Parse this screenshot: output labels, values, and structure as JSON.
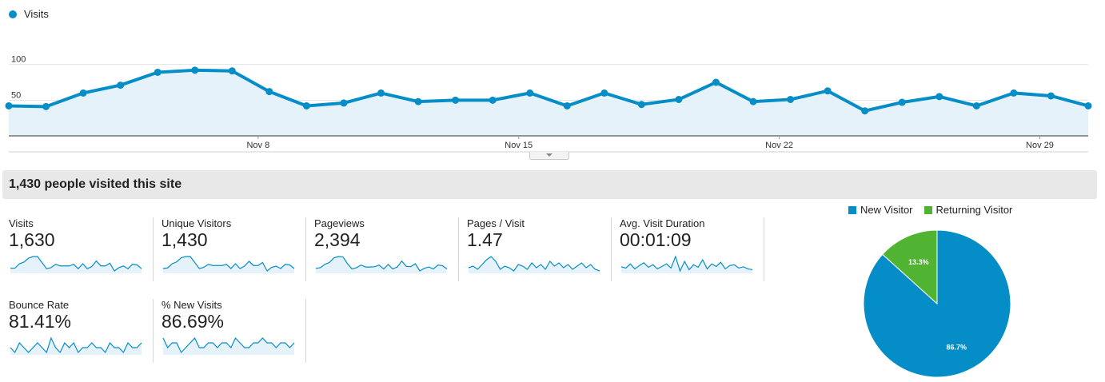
{
  "legend": {
    "label": "Visits",
    "color": "#058dc7"
  },
  "summary": {
    "title": "1,430 people visited this site"
  },
  "metrics": [
    {
      "label": "Visits",
      "value": "1,630",
      "spark": [
        42,
        42,
        50,
        53,
        60,
        63,
        63,
        52,
        41,
        43,
        49,
        46,
        46,
        46,
        49,
        41,
        50,
        41,
        45,
        55,
        46,
        46,
        51,
        37,
        43,
        46,
        41,
        49,
        48,
        41
      ]
    },
    {
      "label": "Unique Visitors",
      "value": "1,430",
      "spark": [
        40,
        41,
        48,
        51,
        58,
        60,
        60,
        50,
        40,
        42,
        47,
        45,
        45,
        45,
        47,
        40,
        48,
        40,
        44,
        52,
        45,
        45,
        50,
        36,
        42,
        44,
        40,
        47,
        46,
        40
      ]
    },
    {
      "label": "Pageviews",
      "value": "2,394",
      "spark": [
        60,
        62,
        72,
        78,
        92,
        96,
        95,
        74,
        58,
        62,
        70,
        64,
        64,
        65,
        70,
        58,
        72,
        58,
        64,
        82,
        66,
        65,
        74,
        52,
        60,
        64,
        58,
        70,
        68,
        58
      ]
    },
    {
      "label": "Pages / Visit",
      "value": "1.47",
      "spark": [
        1.45,
        1.46,
        1.44,
        1.47,
        1.5,
        1.52,
        1.49,
        1.44,
        1.46,
        1.45,
        1.43,
        1.47,
        1.46,
        1.44,
        1.48,
        1.45,
        1.47,
        1.44,
        1.49,
        1.46,
        1.48,
        1.45,
        1.47,
        1.44,
        1.46,
        1.48,
        1.45,
        1.47,
        1.44,
        1.43
      ]
    },
    {
      "label": "Avg. Visit Duration",
      "value": "00:01:09",
      "spark": [
        65,
        62,
        72,
        60,
        68,
        75,
        64,
        70,
        60,
        66,
        72,
        62,
        90,
        55,
        78,
        58,
        70,
        64,
        82,
        60,
        72,
        66,
        76,
        60,
        68,
        70,
        62,
        65,
        60,
        58
      ]
    },
    {
      "label": "Bounce Rate",
      "value": "81.41%",
      "spark": [
        81,
        80,
        82,
        81,
        80,
        81,
        82,
        81,
        80,
        83,
        81,
        80,
        82,
        81,
        82,
        80,
        81,
        81,
        82,
        81,
        81,
        80,
        82,
        81,
        81,
        80,
        82,
        81,
        81,
        82
      ]
    },
    {
      "label": "% New Visits",
      "value": "86.69%",
      "spark": [
        86.8,
        86.6,
        86.7,
        86.7,
        86.5,
        86.6,
        86.7,
        86.8,
        86.6,
        86.6,
        86.7,
        86.7,
        86.6,
        86.7,
        86.7,
        86.6,
        86.8,
        86.7,
        86.6,
        86.6,
        86.7,
        86.7,
        86.8,
        86.7,
        86.7,
        86.6,
        86.7,
        86.7,
        86.6,
        86.7
      ]
    }
  ],
  "pie": {
    "slices": [
      {
        "name": "New Visitor",
        "value": 86.7,
        "label": "86.7%",
        "color": "#058dc7"
      },
      {
        "name": "Returning Visitor",
        "value": 13.3,
        "label": "13.3%",
        "color": "#50b432"
      }
    ]
  },
  "chart_data": {
    "type": "area",
    "series": [
      {
        "name": "Visits",
        "values": [
          42,
          41,
          60,
          71,
          89,
          92,
          91,
          62,
          42,
          46,
          60,
          48,
          50,
          50,
          60,
          42,
          60,
          44,
          51,
          75,
          48,
          51,
          63,
          35,
          47,
          55,
          42,
          60,
          56,
          42
        ]
      }
    ],
    "x_tick_labels": [
      "Nov 8",
      "Nov 15",
      "Nov 22",
      "Nov 29"
    ],
    "y_tick_labels": [
      "100",
      "50"
    ],
    "ylim": [
      0,
      150
    ],
    "color": "#058dc7",
    "fill_color": "#e6f2fa",
    "grid": true,
    "legend": "top-left"
  }
}
